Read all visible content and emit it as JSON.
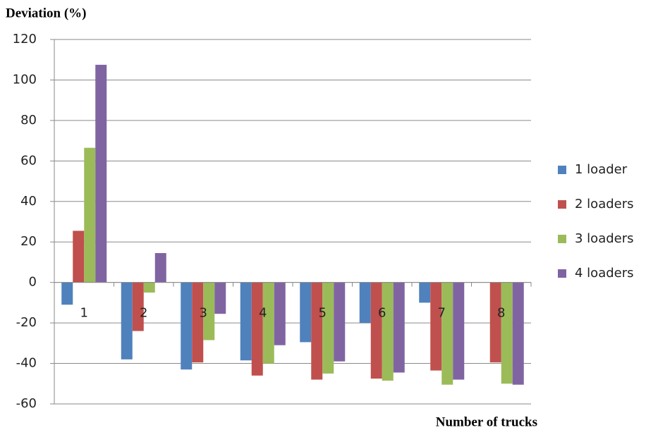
{
  "chart_data": {
    "type": "bar",
    "y_label": "Deviation (%)",
    "x_label": "Number of trucks",
    "categories": [
      "1",
      "2",
      "3",
      "4",
      "5",
      "6",
      "7",
      "8"
    ],
    "series": [
      {
        "name": "1 loader",
        "color": "#4f81bd",
        "values": [
          -11,
          -38,
          -43,
          -38.5,
          -29.5,
          -20,
          -10,
          null
        ]
      },
      {
        "name": "2 loaders",
        "color": "#c0504d",
        "values": [
          25.5,
          -24,
          -39.5,
          -46,
          -48,
          -47.5,
          -43.5,
          -39.5
        ]
      },
      {
        "name": "3 loaders",
        "color": "#9bbb59",
        "values": [
          66.5,
          -5,
          -28.5,
          -40,
          -45,
          -48.5,
          -50.5,
          -50
        ]
      },
      {
        "name": "4 loaders",
        "color": "#8064a2",
        "values": [
          107.5,
          14.5,
          -15.5,
          -31,
          -39,
          -44.5,
          -48,
          -50.5
        ]
      }
    ],
    "ylim": [
      -60,
      120
    ],
    "yticks": [
      -60,
      -40,
      -20,
      0,
      20,
      40,
      60,
      80,
      100,
      120
    ],
    "grid": true,
    "legend": "right"
  }
}
